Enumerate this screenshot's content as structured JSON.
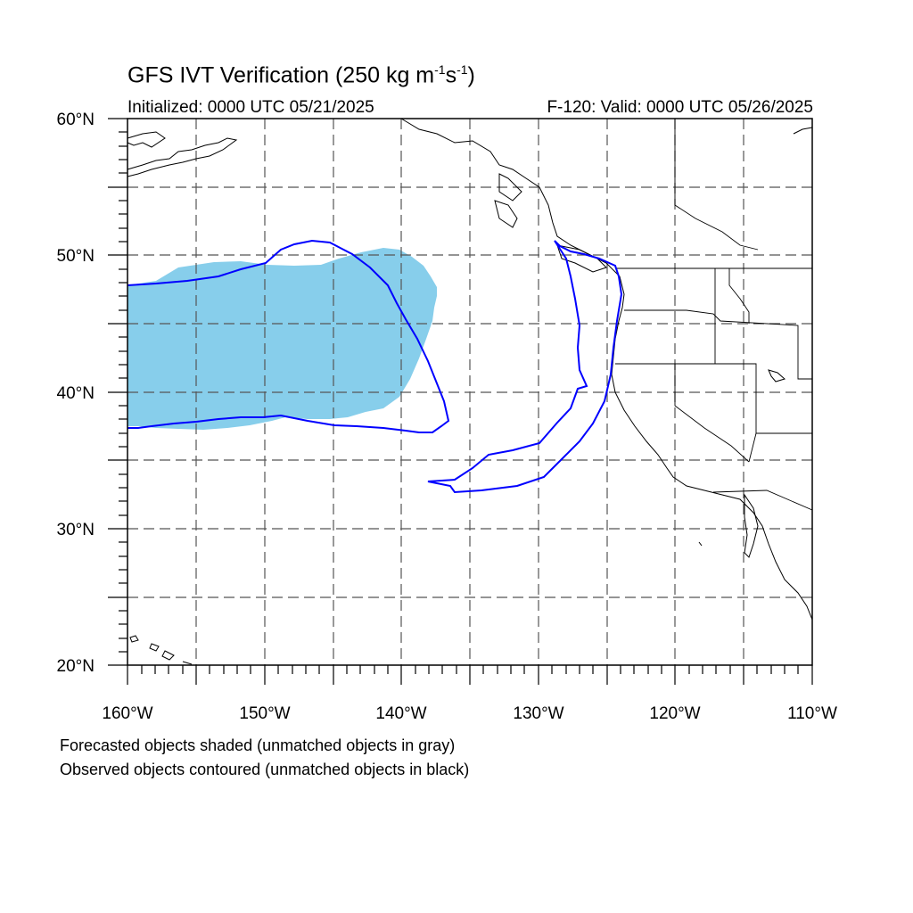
{
  "title": {
    "text": "GFS IVT Verification (250 kg m",
    "sup1": "-1",
    "mid": "s",
    "sup2": "-1",
    "close": ")"
  },
  "initialized": "Initialized: 0000 UTC 05/21/2025",
  "valid": "F-120: Valid: 0000 UTC 05/26/2025",
  "captions": {
    "line1": "Forecasted objects shaded (unmatched objects in gray)",
    "line2": "Observed objects contoured (unmatched objects in black)"
  },
  "map": {
    "lon_range": [
      -160,
      -110
    ],
    "lat_range": [
      20,
      60
    ],
    "lon_labels": [
      "160°W",
      "150°W",
      "140°W",
      "130°W",
      "120°W",
      "110°W"
    ],
    "lat_labels": [
      "60°N",
      "50°N",
      "40°N",
      "30°N",
      "20°N"
    ],
    "colors": {
      "forecast_fill": "#87ceeb",
      "observed_contour": "#0000ff",
      "coastline": "#000000",
      "grid": "#555555"
    }
  }
}
